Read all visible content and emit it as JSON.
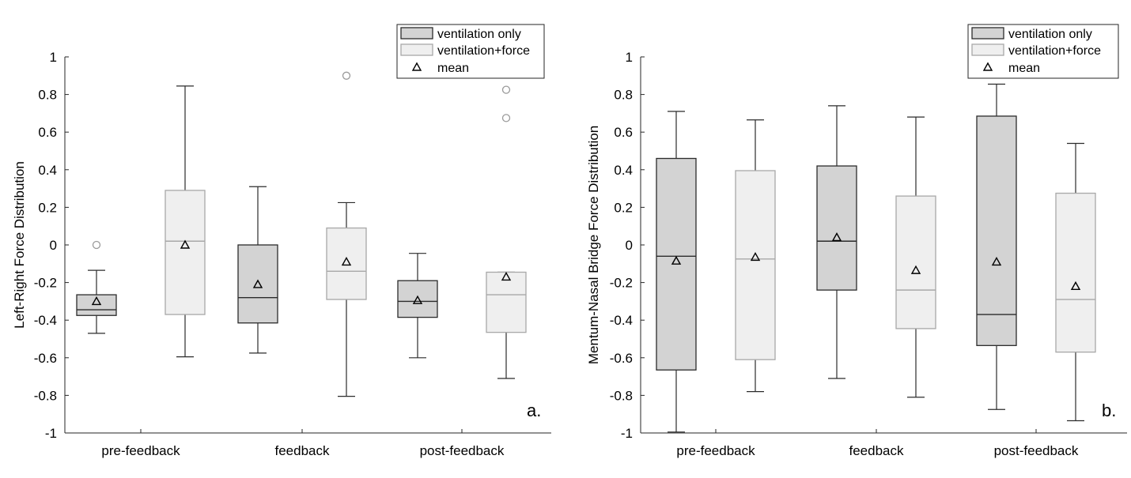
{
  "colors": {
    "ventilation_only_fill": "#d3d3d3",
    "ventilation_only_edge": "#2b2b2b",
    "ventilation_force_fill": "#efefef",
    "ventilation_force_edge": "#a8a8a8",
    "axis": "#262626",
    "whisker": "#2b2b2b"
  },
  "legend": {
    "entries": [
      "ventilation only",
      "ventilation+force",
      "mean"
    ],
    "placement": "top-right"
  },
  "chart_data": [
    {
      "type": "box",
      "panel_label": "a.",
      "ylabel": "Left-Right Force Distribution",
      "xlabel": "",
      "ylim": [
        -1,
        1
      ],
      "yticks": [
        "-1",
        "-0.8",
        "-0.6",
        "-0.4",
        "-0.2",
        "0",
        "0.2",
        "0.4",
        "0.6",
        "0.8",
        "1"
      ],
      "categories": [
        "pre-feedback",
        "feedback",
        "post-feedback"
      ],
      "series": [
        {
          "name": "ventilation only",
          "boxes": [
            {
              "min": -0.47,
              "q1": -0.375,
              "median": -0.345,
              "q3": -0.265,
              "max": -0.135,
              "mean": -0.3,
              "outliers": [
                0.0
              ]
            },
            {
              "min": -0.575,
              "q1": -0.415,
              "median": -0.28,
              "q3": 0.0,
              "max": 0.31,
              "mean": -0.21,
              "outliers": []
            },
            {
              "min": -0.6,
              "q1": -0.385,
              "median": -0.3,
              "q3": -0.19,
              "max": -0.045,
              "mean": -0.295,
              "outliers": []
            }
          ]
        },
        {
          "name": "ventilation+force",
          "boxes": [
            {
              "min": -0.595,
              "q1": -0.37,
              "median": 0.02,
              "q3": 0.29,
              "max": 0.845,
              "mean": 0.0,
              "outliers": []
            },
            {
              "min": -0.805,
              "q1": -0.29,
              "median": -0.14,
              "q3": 0.09,
              "max": 0.225,
              "mean": -0.09,
              "outliers": [
                0.9
              ]
            },
            {
              "min": -0.71,
              "q1": -0.465,
              "median": -0.265,
              "q3": -0.145,
              "max": -0.145,
              "mean": -0.17,
              "outliers": [
                0.675,
                0.825
              ]
            }
          ]
        }
      ]
    },
    {
      "type": "box",
      "panel_label": "b.",
      "ylabel": "Mentum-Nasal Bridge Force Distribution",
      "xlabel": "",
      "ylim": [
        -1,
        1
      ],
      "yticks": [
        "-1",
        "-0.8",
        "-0.6",
        "-0.4",
        "-0.2",
        "0",
        "0.2",
        "0.4",
        "0.6",
        "0.8",
        "1"
      ],
      "categories": [
        "pre-feedback",
        "feedback",
        "post-feedback"
      ],
      "series": [
        {
          "name": "ventilation only",
          "boxes": [
            {
              "min": -0.995,
              "q1": -0.665,
              "median": -0.06,
              "q3": 0.46,
              "max": 0.71,
              "mean": -0.085,
              "outliers": []
            },
            {
              "min": -0.71,
              "q1": -0.24,
              "median": 0.02,
              "q3": 0.42,
              "max": 0.74,
              "mean": 0.04,
              "outliers": []
            },
            {
              "min": -0.875,
              "q1": -0.535,
              "median": -0.37,
              "q3": 0.685,
              "max": 0.855,
              "mean": -0.09,
              "outliers": []
            }
          ]
        },
        {
          "name": "ventilation+force",
          "boxes": [
            {
              "min": -0.78,
              "q1": -0.61,
              "median": -0.075,
              "q3": 0.395,
              "max": 0.665,
              "mean": -0.065,
              "outliers": []
            },
            {
              "min": -0.81,
              "q1": -0.445,
              "median": -0.24,
              "q3": 0.26,
              "max": 0.68,
              "mean": -0.135,
              "outliers": []
            },
            {
              "min": -0.935,
              "q1": -0.57,
              "median": -0.29,
              "q3": 0.275,
              "max": 0.54,
              "mean": -0.22,
              "outliers": []
            }
          ]
        }
      ]
    }
  ]
}
